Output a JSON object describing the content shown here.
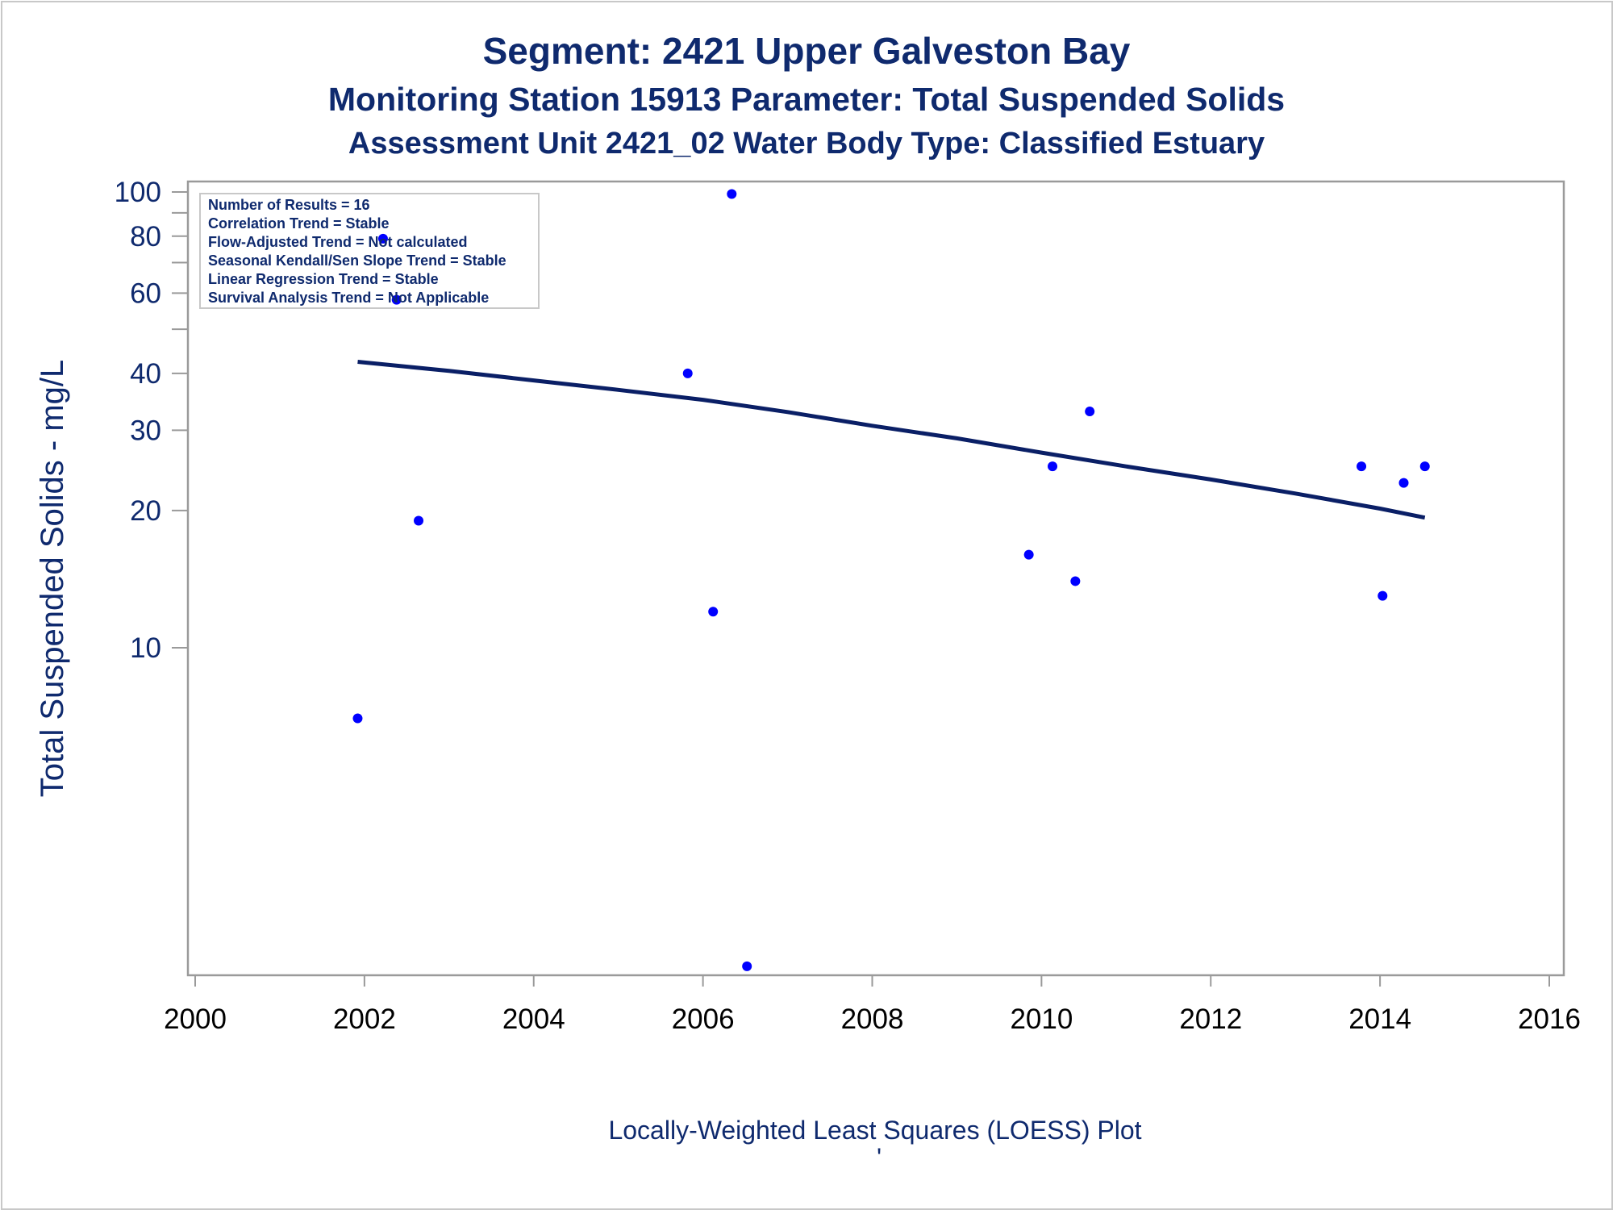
{
  "titles": {
    "line1": "Segment: 2421  Upper Galveston Bay",
    "line2": "Monitoring Station 15913 Parameter: Total Suspended Solids",
    "line3": "Assessment Unit 2421_02   Water Body Type: Classified Estuary"
  },
  "stats_box": {
    "lines": [
      "Number of Results = 16",
      "Correlation Trend = Stable",
      "Flow-Adjusted Trend = Not calculated",
      "Seasonal Kendall/Sen Slope Trend = Stable",
      "Linear Regression Trend = Stable",
      "Survival Analysis Trend = Not Applicable"
    ]
  },
  "footnote": "Locally-Weighted Least Squares (LOESS) Plot",
  "footnote_mark": "'",
  "colors": {
    "text": "#0f2a6e",
    "points": "#0000ff",
    "line": "#0a1f66",
    "axis": "#9a9a9a"
  },
  "chart_data": {
    "type": "scatter",
    "ylabel": "Total Suspended Solids - mg/L",
    "xlabel": "",
    "x_scale": "linear",
    "y_scale": "log",
    "xlim": [
      2000,
      2016
    ],
    "ylim": [
      2,
      100
    ],
    "x_ticks": [
      2000,
      2002,
      2004,
      2006,
      2008,
      2010,
      2012,
      2014,
      2016
    ],
    "x_tick_labels": [
      "2000",
      "2002",
      "2004",
      "2006",
      "2008",
      "2010",
      "2012",
      "2014",
      "2016"
    ],
    "y_ticks": [
      10,
      20,
      30,
      40,
      60,
      80,
      100
    ],
    "y_tick_labels": [
      "10",
      "20",
      "30",
      "40",
      "60",
      "80",
      "100"
    ],
    "y_minor_ticks": [
      50,
      70,
      90
    ],
    "grid": false,
    "legend": "none",
    "series": [
      {
        "type": "scatter",
        "points": [
          [
            2001.92,
            7
          ],
          [
            2002.22,
            79
          ],
          [
            2002.38,
            58
          ],
          [
            2002.64,
            19
          ],
          [
            2005.82,
            40
          ],
          [
            2006.12,
            12
          ],
          [
            2006.34,
            99
          ],
          [
            2006.52,
            2
          ],
          [
            2009.85,
            16
          ],
          [
            2010.13,
            25
          ],
          [
            2010.4,
            14
          ],
          [
            2010.57,
            33
          ],
          [
            2013.78,
            25
          ],
          [
            2014.03,
            13
          ],
          [
            2014.28,
            23
          ],
          [
            2014.53,
            25
          ]
        ]
      },
      {
        "type": "line",
        "points": [
          [
            2001.92,
            42.4
          ],
          [
            2003,
            40.5
          ],
          [
            2004,
            38.6
          ],
          [
            2005,
            36.8
          ],
          [
            2006,
            35.0
          ],
          [
            2007,
            32.9
          ],
          [
            2008,
            30.7
          ],
          [
            2009,
            28.8
          ],
          [
            2010,
            26.8
          ],
          [
            2011,
            25.0
          ],
          [
            2012,
            23.4
          ],
          [
            2013,
            21.8
          ],
          [
            2014,
            20.2
          ],
          [
            2014.53,
            19.3
          ]
        ]
      }
    ]
  }
}
